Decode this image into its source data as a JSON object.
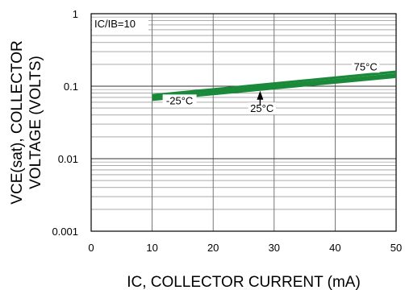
{
  "chart_data": {
    "type": "line",
    "title": "",
    "xlabel": "IC, COLLECTOR CURRENT (mA)",
    "ylabel_lines": [
      "VCE(sat), COLLECTOR",
      "VOLTAGE (VOLTS)"
    ],
    "xlim": [
      0,
      50
    ],
    "ylim": [
      0.001,
      1
    ],
    "y_scale": "log",
    "x_ticks": [
      "0",
      "10",
      "20",
      "30",
      "40",
      "50"
    ],
    "y_ticks": [
      "0.001",
      "0.01",
      "0.1",
      "1"
    ],
    "grid": true,
    "condition_label": "IC/IB=10",
    "series_color": "#1a8a3a",
    "series": [
      {
        "name": "-25°C",
        "x": [
          10,
          50
        ],
        "y": [
          0.065,
          0.135
        ]
      },
      {
        "name": "25°C",
        "x": [
          10,
          50
        ],
        "y": [
          0.07,
          0.145
        ]
      },
      {
        "name": "75°C",
        "x": [
          10,
          50
        ],
        "y": [
          0.075,
          0.158
        ]
      }
    ],
    "annotations": [
      {
        "text": "75°C",
        "x": 45,
        "y": 0.17
      },
      {
        "text": "-25°C",
        "x": 14.5,
        "y": 0.058
      },
      {
        "text": "25°C",
        "x": 28,
        "y": 0.045
      }
    ]
  }
}
